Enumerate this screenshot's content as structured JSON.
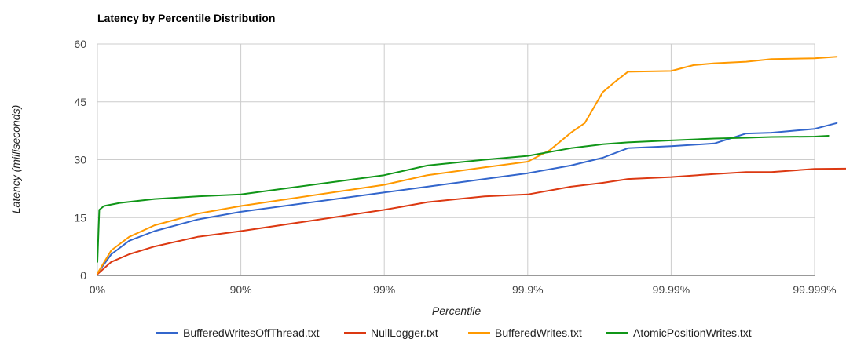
{
  "chart_data": {
    "type": "line",
    "title": "Latency by Percentile Distribution",
    "xlabel": "Percentile",
    "ylabel": "Latency (milliseconds)",
    "x_scale": "log of 1/(1 - percentile)",
    "x_ticks": [
      "0%",
      "90%",
      "99%",
      "99.9%",
      "99.99%",
      "99.999%"
    ],
    "y_ticks": [
      "0",
      "15",
      "30",
      "45",
      "60"
    ],
    "ylim": [
      0,
      60
    ],
    "grid": true,
    "legend_position": "bottom",
    "series": [
      {
        "name": "BufferedWritesOffThread.txt",
        "color": "#3366cc",
        "points": [
          [
            0,
            0.5
          ],
          [
            20,
            5.5
          ],
          [
            40,
            9.0
          ],
          [
            60,
            11.5
          ],
          [
            80,
            14.5
          ],
          [
            90,
            16.5
          ],
          [
            99,
            21.5
          ],
          [
            99.5,
            23.0
          ],
          [
            99.8,
            25.0
          ],
          [
            99.9,
            26.5
          ],
          [
            99.95,
            28.5
          ],
          [
            99.97,
            30.5
          ],
          [
            99.98,
            33.0
          ],
          [
            99.99,
            33.5
          ],
          [
            99.995,
            34.2
          ],
          [
            99.997,
            36.8
          ],
          [
            99.998,
            37.0
          ],
          [
            99.999,
            38.0
          ],
          [
            99.9993,
            39.5
          ]
        ]
      },
      {
        "name": "NullLogger.txt",
        "color": "#dc3912",
        "points": [
          [
            0,
            0.3
          ],
          [
            20,
            3.5
          ],
          [
            40,
            5.5
          ],
          [
            60,
            7.5
          ],
          [
            80,
            10.0
          ],
          [
            90,
            11.5
          ],
          [
            99,
            17.0
          ],
          [
            99.5,
            19.0
          ],
          [
            99.8,
            20.5
          ],
          [
            99.9,
            21.0
          ],
          [
            99.95,
            23.0
          ],
          [
            99.97,
            24.0
          ],
          [
            99.98,
            25.0
          ],
          [
            99.99,
            25.5
          ],
          [
            99.995,
            26.3
          ],
          [
            99.997,
            26.8
          ],
          [
            99.998,
            26.8
          ],
          [
            99.999,
            27.6
          ],
          [
            99.9995,
            27.7
          ],
          [
            99.9999,
            28.2
          ]
        ]
      },
      {
        "name": "BufferedWrites.txt",
        "color": "#ff9900",
        "points": [
          [
            0,
            0.5
          ],
          [
            20,
            6.5
          ],
          [
            40,
            10.0
          ],
          [
            60,
            13.0
          ],
          [
            80,
            16.0
          ],
          [
            90,
            18.0
          ],
          [
            99,
            23.5
          ],
          [
            99.5,
            26.0
          ],
          [
            99.8,
            28.0
          ],
          [
            99.9,
            29.5
          ],
          [
            99.93,
            32.5
          ],
          [
            99.95,
            37.0
          ],
          [
            99.96,
            39.5
          ],
          [
            99.97,
            47.5
          ],
          [
            99.975,
            50.0
          ],
          [
            99.98,
            52.8
          ],
          [
            99.99,
            53.0
          ],
          [
            99.993,
            54.5
          ],
          [
            99.995,
            55.0
          ],
          [
            99.997,
            55.4
          ],
          [
            99.998,
            56.1
          ],
          [
            99.999,
            56.3
          ],
          [
            99.9993,
            56.7
          ]
        ]
      },
      {
        "name": "AtomicPositionWrites.txt",
        "color": "#109618",
        "points": [
          [
            0,
            3.5
          ],
          [
            3,
            17.0
          ],
          [
            10,
            18.0
          ],
          [
            30,
            18.8
          ],
          [
            60,
            19.8
          ],
          [
            80,
            20.5
          ],
          [
            90,
            21.0
          ],
          [
            99,
            26.0
          ],
          [
            99.5,
            28.5
          ],
          [
            99.8,
            30.0
          ],
          [
            99.9,
            31.0
          ],
          [
            99.95,
            33.0
          ],
          [
            99.97,
            34.0
          ],
          [
            99.98,
            34.5
          ],
          [
            99.99,
            35.0
          ],
          [
            99.995,
            35.5
          ],
          [
            99.997,
            35.7
          ],
          [
            99.998,
            35.9
          ],
          [
            99.999,
            36.0
          ],
          [
            99.9992,
            36.2
          ]
        ]
      }
    ]
  }
}
